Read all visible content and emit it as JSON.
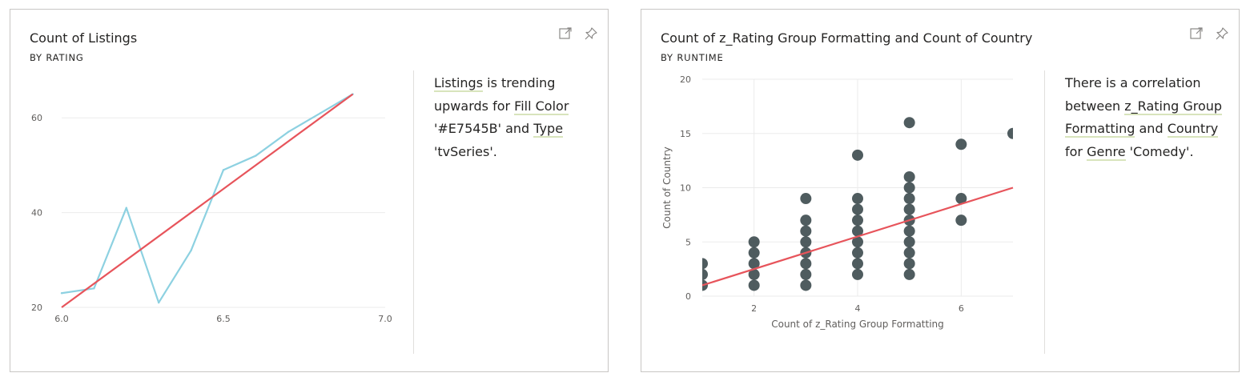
{
  "colors": {
    "line_series": "#8dd1e1",
    "trend": "#e7545b",
    "scatter_point": "#374649",
    "grid": "#ebebeb",
    "highlight": "#d8e4bc"
  },
  "icons": [
    "expand-icon",
    "pin-icon"
  ],
  "cards": [
    {
      "title": "Count of Listings",
      "subtitle": "BY RATING",
      "narrative": [
        {
          "text": "Listings",
          "highlight": true
        },
        {
          "text": " is trending upwards for ",
          "highlight": false
        },
        {
          "text": "Fill Color",
          "highlight": true
        },
        {
          "text": " '#E7545B' and ",
          "highlight": false
        },
        {
          "text": "Type",
          "highlight": true
        },
        {
          "text": " 'tvSeries'.",
          "highlight": false
        }
      ]
    },
    {
      "title": "Count of z_Rating Group Formatting and Count of Country",
      "subtitle": "BY RUNTIME",
      "narrative": [
        {
          "text": "There is a correlation between ",
          "highlight": false
        },
        {
          "text": "z_Rating Group Formatting",
          "highlight": true
        },
        {
          "text": " and ",
          "highlight": false
        },
        {
          "text": "Country",
          "highlight": true
        },
        {
          "text": " for ",
          "highlight": false
        },
        {
          "text": "Genre",
          "highlight": true
        },
        {
          "text": " 'Comedy'.",
          "highlight": false
        }
      ]
    }
  ],
  "chart_data": [
    {
      "type": "line",
      "title": "Count of Listings",
      "subtitle": "BY RATING",
      "xlim": [
        6.0,
        7.0
      ],
      "ylim": [
        20,
        70
      ],
      "x_ticks": [
        6.0,
        6.5,
        7.0
      ],
      "x_tick_labels": [
        "6.0",
        "6.5",
        "7.0"
      ],
      "y_ticks": [
        20,
        40,
        60
      ],
      "y_tick_labels": [
        "20",
        "40",
        "60"
      ],
      "grid": true,
      "series": [
        {
          "x": [
            6.0,
            6.1,
            6.2,
            6.3,
            6.4,
            6.5,
            6.6,
            6.7,
            6.8,
            6.9
          ],
          "y": [
            23,
            24,
            41,
            21,
            32,
            49,
            52,
            57,
            61,
            65
          ]
        }
      ],
      "trendline": {
        "x": [
          6.0,
          6.9
        ],
        "y": [
          20,
          65
        ]
      }
    },
    {
      "type": "scatter",
      "title": "Count of z_Rating Group Formatting and Count of Country",
      "subtitle": "BY RUNTIME",
      "xlabel": "Count of z_Rating Group Formatting",
      "ylabel": "Count of Country",
      "xlim": [
        1,
        7
      ],
      "ylim": [
        0,
        20
      ],
      "x_ticks": [
        2,
        4,
        6
      ],
      "x_tick_labels": [
        "2",
        "4",
        "6"
      ],
      "y_ticks": [
        0,
        5,
        10,
        15,
        20
      ],
      "y_tick_labels": [
        "0",
        "5",
        "10",
        "15",
        "20"
      ],
      "grid": true,
      "points": [
        [
          1,
          1
        ],
        [
          1,
          2
        ],
        [
          1,
          3
        ],
        [
          2,
          1
        ],
        [
          2,
          2
        ],
        [
          2,
          3
        ],
        [
          2,
          4
        ],
        [
          2,
          5
        ],
        [
          3,
          1
        ],
        [
          3,
          2
        ],
        [
          3,
          3
        ],
        [
          3,
          4
        ],
        [
          3,
          5
        ],
        [
          3,
          6
        ],
        [
          3,
          7
        ],
        [
          3,
          9
        ],
        [
          4,
          2
        ],
        [
          4,
          3
        ],
        [
          4,
          4
        ],
        [
          4,
          5
        ],
        [
          4,
          6
        ],
        [
          4,
          7
        ],
        [
          4,
          8
        ],
        [
          4,
          9
        ],
        [
          4,
          13
        ],
        [
          5,
          2
        ],
        [
          5,
          3
        ],
        [
          5,
          4
        ],
        [
          5,
          5
        ],
        [
          5,
          6
        ],
        [
          5,
          7
        ],
        [
          5,
          8
        ],
        [
          5,
          9
        ],
        [
          5,
          10
        ],
        [
          5,
          11
        ],
        [
          5,
          16
        ],
        [
          6,
          7
        ],
        [
          6,
          9
        ],
        [
          6,
          14
        ],
        [
          7,
          15
        ]
      ],
      "trendline": {
        "x": [
          1,
          7
        ],
        "y": [
          1.0,
          10.0
        ]
      }
    }
  ]
}
